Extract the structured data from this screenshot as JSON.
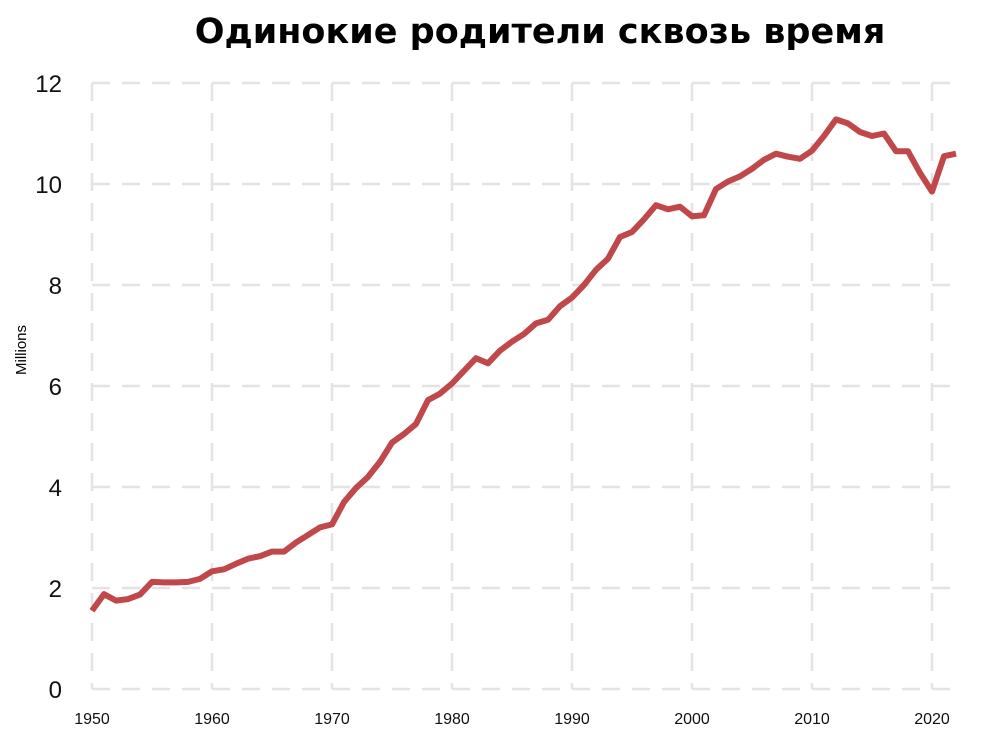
{
  "chart_data": {
    "type": "line",
    "title": "Одинокие родители сквозь время",
    "xlabel": "",
    "ylabel": "Millions",
    "xlim": [
      1950,
      2022
    ],
    "ylim": [
      0,
      12
    ],
    "x_ticks": [
      1950,
      1960,
      1970,
      1980,
      1990,
      2000,
      2010,
      2020
    ],
    "y_ticks": [
      0,
      2,
      4,
      6,
      8,
      10,
      12
    ],
    "grid": true,
    "grid_style": "dashed",
    "line_color": "#c0474a",
    "x": [
      1950,
      1951,
      1952,
      1953,
      1954,
      1955,
      1956,
      1957,
      1958,
      1959,
      1960,
      1961,
      1962,
      1963,
      1964,
      1965,
      1966,
      1967,
      1968,
      1969,
      1970,
      1971,
      1972,
      1973,
      1974,
      1975,
      1976,
      1977,
      1978,
      1979,
      1980,
      1981,
      1982,
      1983,
      1984,
      1985,
      1986,
      1987,
      1988,
      1989,
      1990,
      1991,
      1992,
      1993,
      1994,
      1995,
      1996,
      1997,
      1998,
      1999,
      2000,
      2001,
      2002,
      2003,
      2004,
      2005,
      2006,
      2007,
      2008,
      2009,
      2010,
      2011,
      2012,
      2013,
      2014,
      2015,
      2016,
      2017,
      2018,
      2019,
      2020,
      2021,
      2022
    ],
    "series": [
      {
        "values": [
          1.55,
          1.88,
          1.75,
          1.78,
          1.87,
          2.12,
          2.11,
          2.11,
          2.12,
          2.18,
          2.33,
          2.37,
          2.48,
          2.58,
          2.63,
          2.72,
          2.72,
          2.9,
          3.05,
          3.2,
          3.26,
          3.7,
          3.98,
          4.2,
          4.5,
          4.88,
          5.05,
          5.25,
          5.72,
          5.85,
          6.05,
          6.3,
          6.55,
          6.45,
          6.7,
          6.88,
          7.03,
          7.24,
          7.31,
          7.58,
          7.75,
          8.0,
          8.3,
          8.52,
          8.95,
          9.05,
          9.3,
          9.58,
          9.5,
          9.55,
          9.36,
          9.38,
          9.9,
          10.05,
          10.15,
          10.3,
          10.48,
          10.6,
          10.54,
          10.5,
          10.66,
          10.95,
          11.28,
          11.2,
          11.03,
          10.95,
          11.0,
          10.65,
          10.65,
          10.22,
          9.85,
          10.55,
          10.6
        ]
      }
    ]
  }
}
